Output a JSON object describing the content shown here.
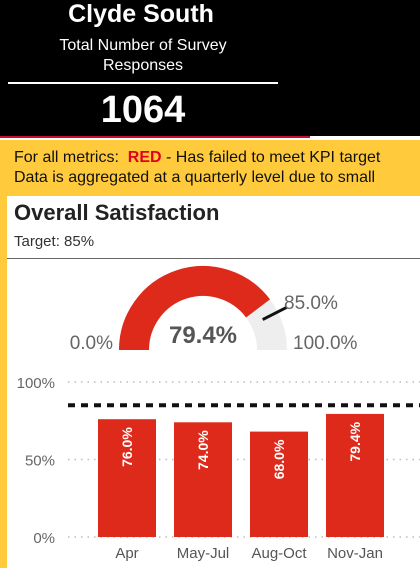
{
  "header": {
    "region": "Clyde South",
    "subtitle_line1": "Total Number of Survey",
    "subtitle_line2": "Responses",
    "count": "1064"
  },
  "banner": {
    "line1_prefix": "For all metrics:",
    "line1_status": "RED",
    "line1_suffix": "- Has failed to meet KPI target",
    "line2": "Data is aggregated at a quarterly level due to small"
  },
  "section": {
    "title": "Overall Satisfaction",
    "target": "Target: 85%"
  },
  "gauge": {
    "value": 79.4,
    "value_label": "79.4%",
    "min_label": "0.0%",
    "max_label": "100.0%",
    "target_value": 85,
    "target_label": "85.0%"
  },
  "chart_data": {
    "type": "bar",
    "categories": [
      "Apr",
      "May-Jul",
      "Aug-Oct",
      "Nov-Jan"
    ],
    "values": [
      76.0,
      74.0,
      68.0,
      79.4
    ],
    "data_labels": [
      "76.0%",
      "74.0%",
      "68.0%",
      "79.4%"
    ],
    "y_ticks": [
      "100%",
      "50%",
      "0%"
    ],
    "ylim": [
      0,
      100
    ],
    "target_line": 85,
    "grid": true
  },
  "colors": {
    "status_red": "#e3001b",
    "bar_red": "#dd2a1b",
    "banner_yellow": "#ffcb3d",
    "gauge_track": "#eeeeee"
  }
}
